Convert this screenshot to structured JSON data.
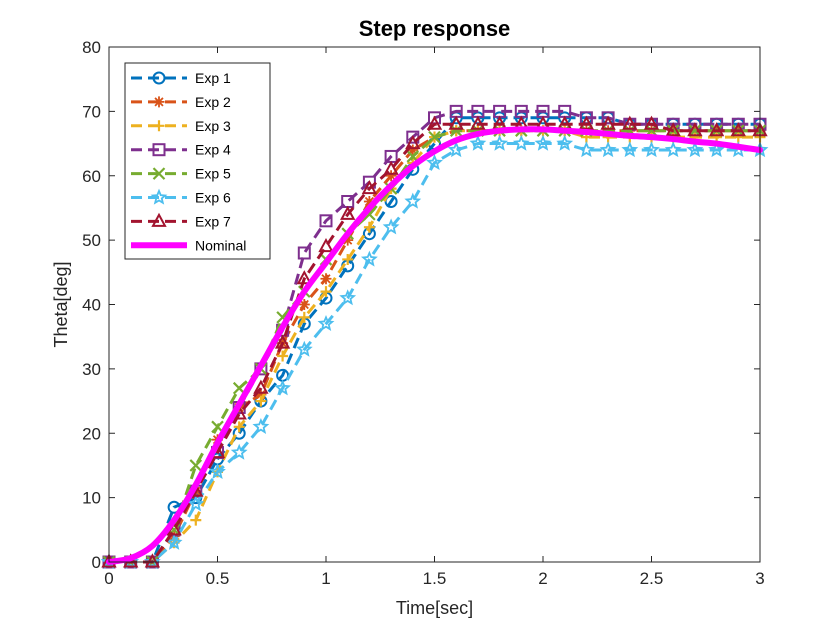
{
  "chart_data": {
    "type": "line",
    "title": "Step response",
    "xlabel": "Time[sec]",
    "ylabel": "Theta[deg]",
    "xlim": [
      0,
      3
    ],
    "ylim": [
      0,
      80
    ],
    "xticks": [
      0,
      0.5,
      1,
      1.5,
      2,
      2.5,
      3
    ],
    "yticks": [
      0,
      10,
      20,
      30,
      40,
      50,
      60,
      70,
      80
    ],
    "xtick_labels": [
      "0",
      "0.5",
      "1",
      "1.5",
      "2",
      "2.5",
      "3"
    ],
    "ytick_labels": [
      "0",
      "10",
      "20",
      "30",
      "40",
      "50",
      "60",
      "70",
      "80"
    ],
    "grid": false,
    "legend_position": "top-left",
    "series": [
      {
        "name": "Exp 1",
        "color": "#0072BD",
        "marker": "circle",
        "x": [
          0,
          0.1,
          0.2,
          0.3,
          0.4,
          0.5,
          0.6,
          0.7,
          0.8,
          0.9,
          1.0,
          1.1,
          1.2,
          1.3,
          1.4,
          1.5,
          1.6,
          1.7,
          1.8,
          1.9,
          2.0,
          2.1,
          2.2,
          2.3,
          2.4,
          2.5,
          2.6,
          2.7,
          2.8,
          2.9,
          3.0
        ],
        "y": [
          0,
          0,
          0,
          8.5,
          10,
          16,
          20,
          25,
          29,
          37,
          41,
          46,
          51,
          56,
          61,
          65,
          69,
          69,
          69,
          69,
          69,
          69,
          69,
          69,
          68,
          68,
          68,
          68,
          68,
          68,
          68
        ]
      },
      {
        "name": "Exp 2",
        "color": "#D95319",
        "marker": "asterisk",
        "x": [
          0,
          0.1,
          0.2,
          0.3,
          0.4,
          0.5,
          0.6,
          0.7,
          0.8,
          0.9,
          1.0,
          1.1,
          1.2,
          1.3,
          1.4,
          1.5,
          1.6,
          1.7,
          1.8,
          1.9,
          2.0,
          2.1,
          2.2,
          2.3,
          2.4,
          2.5,
          2.6,
          2.7,
          2.8,
          2.9,
          3.0
        ],
        "y": [
          0,
          0,
          0,
          4,
          11,
          19,
          24,
          26,
          34,
          40,
          44,
          50,
          56,
          60,
          64,
          66,
          67,
          67,
          67,
          67,
          67,
          67,
          67,
          67,
          67,
          67,
          67,
          67,
          67,
          67,
          67
        ]
      },
      {
        "name": "Exp 3",
        "color": "#EDB120",
        "marker": "plus",
        "x": [
          0,
          0.1,
          0.2,
          0.3,
          0.4,
          0.5,
          0.6,
          0.7,
          0.8,
          0.9,
          1.0,
          1.1,
          1.2,
          1.3,
          1.4,
          1.5,
          1.6,
          1.7,
          1.8,
          1.9,
          2.0,
          2.1,
          2.2,
          2.3,
          2.4,
          2.5,
          2.6,
          2.7,
          2.8,
          2.9,
          3.0
        ],
        "y": [
          0,
          0,
          0,
          3,
          6.5,
          14,
          21,
          25,
          32,
          38,
          42,
          47,
          52,
          58,
          62,
          66,
          67,
          67,
          67,
          67,
          67,
          67,
          66,
          66,
          66,
          66,
          66,
          66,
          66,
          66,
          66
        ]
      },
      {
        "name": "Exp 4",
        "color": "#7E2F8E",
        "marker": "square",
        "x": [
          0,
          0.1,
          0.2,
          0.3,
          0.4,
          0.5,
          0.6,
          0.7,
          0.8,
          0.9,
          1.0,
          1.1,
          1.2,
          1.3,
          1.4,
          1.5,
          1.6,
          1.7,
          1.8,
          1.9,
          2.0,
          2.1,
          2.2,
          2.3,
          2.4,
          2.5,
          2.6,
          2.7,
          2.8,
          2.9,
          3.0
        ],
        "y": [
          0,
          0,
          0,
          5,
          11,
          17,
          24,
          30,
          36,
          48,
          53,
          56,
          59,
          63,
          66,
          69,
          70,
          70,
          70,
          70,
          70,
          70,
          69,
          69,
          68,
          68,
          68,
          68,
          68,
          68,
          68
        ]
      },
      {
        "name": "Exp 5",
        "color": "#77AC30",
        "marker": "x",
        "x": [
          0,
          0.1,
          0.2,
          0.3,
          0.4,
          0.5,
          0.6,
          0.7,
          0.8,
          0.9,
          1.0,
          1.1,
          1.2,
          1.3,
          1.4,
          1.5,
          1.6,
          1.7,
          1.8,
          1.9,
          2.0,
          2.1,
          2.2,
          2.3,
          2.4,
          2.5,
          2.6,
          2.7,
          2.8,
          2.9,
          3.0
        ],
        "y": [
          0,
          0,
          0,
          5,
          15,
          21,
          27,
          30,
          38,
          42,
          47,
          51,
          54,
          58,
          63,
          66,
          67,
          67,
          67,
          67,
          67,
          67,
          67,
          67,
          67,
          67,
          67,
          67,
          67,
          67,
          67
        ]
      },
      {
        "name": "Exp 6",
        "color": "#4DBEEE",
        "marker": "star",
        "x": [
          0,
          0.1,
          0.2,
          0.3,
          0.4,
          0.5,
          0.6,
          0.7,
          0.8,
          0.9,
          1.0,
          1.1,
          1.2,
          1.3,
          1.4,
          1.5,
          1.6,
          1.7,
          1.8,
          1.9,
          2.0,
          2.1,
          2.2,
          2.3,
          2.4,
          2.5,
          2.6,
          2.7,
          2.8,
          2.9,
          3.0
        ],
        "y": [
          0,
          0,
          0,
          3,
          9,
          14,
          17,
          21,
          27,
          33,
          37,
          41,
          47,
          52,
          56,
          62,
          64,
          65,
          65,
          65,
          65,
          65,
          64,
          64,
          64,
          64,
          64,
          64,
          64,
          64,
          64
        ]
      },
      {
        "name": "Exp 7",
        "color": "#A2142F",
        "marker": "triangle",
        "x": [
          0,
          0.1,
          0.2,
          0.3,
          0.4,
          0.5,
          0.6,
          0.7,
          0.8,
          0.9,
          1.0,
          1.1,
          1.2,
          1.3,
          1.4,
          1.5,
          1.6,
          1.7,
          1.8,
          1.9,
          2.0,
          2.1,
          2.2,
          2.3,
          2.4,
          2.5,
          2.6,
          2.7,
          2.8,
          2.9,
          3.0
        ],
        "y": [
          0,
          0,
          0,
          5,
          11,
          17,
          23,
          27,
          34,
          44,
          49,
          54,
          58,
          61,
          65,
          68,
          68,
          68,
          68,
          68,
          68,
          68,
          68,
          68,
          68,
          68,
          67,
          67,
          67,
          67,
          67
        ]
      },
      {
        "name": "Nominal",
        "color": "#FF00FF",
        "marker": "none",
        "x": [
          0,
          0.1,
          0.2,
          0.3,
          0.4,
          0.5,
          0.6,
          0.7,
          0.8,
          0.9,
          1.0,
          1.1,
          1.2,
          1.3,
          1.4,
          1.5,
          1.6,
          1.7,
          1.8,
          1.9,
          2.0,
          2.1,
          2.2,
          2.3,
          2.4,
          2.5,
          2.6,
          2.7,
          2.8,
          2.9,
          3.0
        ],
        "y": [
          0,
          0.6,
          2.5,
          6.5,
          12,
          18.5,
          24.5,
          30.5,
          36.5,
          42,
          46.5,
          51,
          55,
          58.5,
          61.5,
          63.8,
          65.5,
          66.5,
          67,
          67.2,
          67.2,
          67,
          66.8,
          66.5,
          66.2,
          66,
          65.7,
          65.3,
          65,
          64.5,
          64
        ]
      }
    ]
  }
}
